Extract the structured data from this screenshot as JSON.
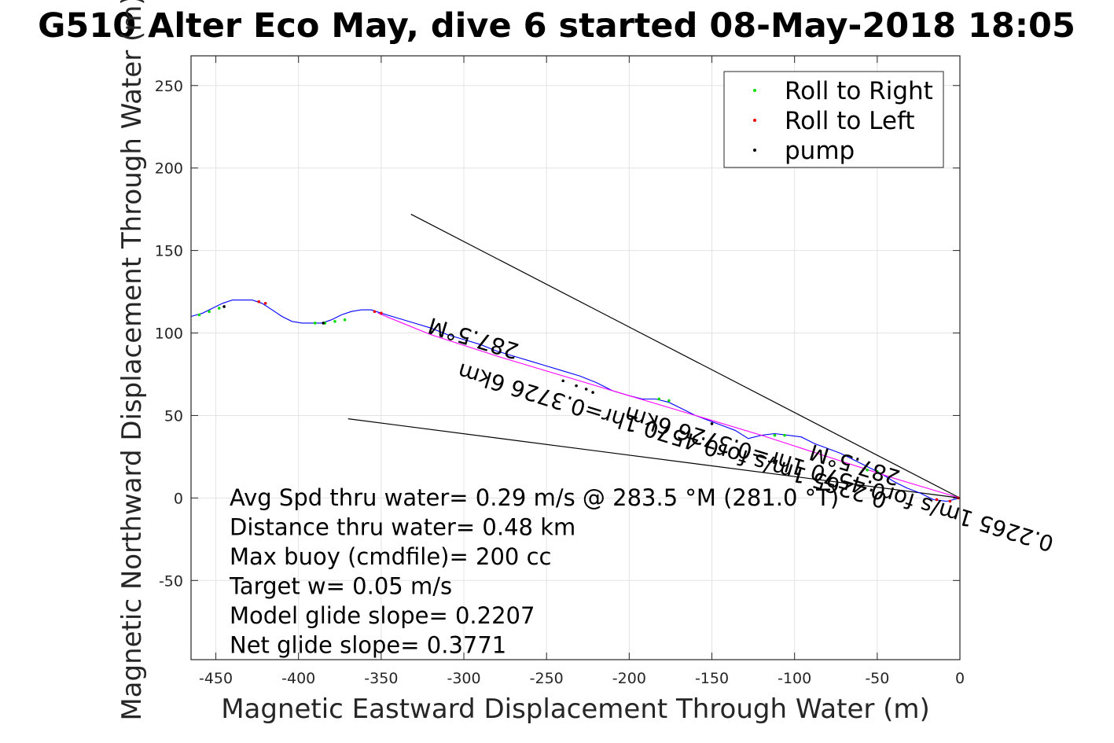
{
  "chart_data": {
    "type": "line",
    "title": "G510 Alter Eco May, dive 6 started 08-May-2018 18:05",
    "xlabel": "Magnetic Eastward Displacement Through Water (m)",
    "ylabel": "Magnetic Northward Displacement Through Water (m)",
    "xlim": [
      -465,
      0
    ],
    "ylim": [
      -98,
      268
    ],
    "xticks": [
      -450,
      -400,
      -350,
      -300,
      -250,
      -200,
      -150,
      -100,
      -50,
      0
    ],
    "yticks": [
      250,
      200,
      150,
      100,
      50,
      0,
      -50
    ],
    "xtick_labels": [
      "-450",
      "-400",
      "-350",
      "-300",
      "-250",
      "-200",
      "-150",
      "-100",
      "-50",
      "0"
    ],
    "ytick_labels": [
      "250",
      "200",
      "150",
      "100",
      "50",
      "0",
      "-50"
    ],
    "grid": true,
    "legend_position": "top-right",
    "legend": [
      {
        "label": "Roll to Right",
        "color": "#00dd00"
      },
      {
        "label": "Roll to Left",
        "color": "#ee0000"
      },
      {
        "label": "pump",
        "color": "#000000"
      }
    ],
    "series": [
      {
        "color": "#0000ff",
        "x": [
          0,
          -8,
          -16,
          -24,
          -32,
          -40,
          -48,
          -56,
          -64,
          -72,
          -80,
          -88,
          -96,
          -104,
          -112,
          -120,
          -128,
          -136,
          -144,
          -152,
          -160,
          -168,
          -176,
          -184,
          -192,
          -200,
          -210,
          -220,
          -230,
          -240,
          -250,
          -260,
          -270,
          -280,
          -290,
          -300,
          -310,
          -320,
          -330,
          -340,
          -350,
          -356,
          -362,
          -368,
          -374,
          -380,
          -386,
          -392,
          -398,
          -404,
          -410,
          -416,
          -422,
          -428,
          -434,
          -440,
          -446,
          -452,
          -458,
          -465
        ],
        "y": [
          0,
          -2,
          -1,
          3,
          6,
          10,
          15,
          19,
          23,
          27,
          30,
          33,
          37,
          38,
          39,
          38,
          36,
          41,
          44,
          47,
          50,
          54,
          58,
          60,
          60,
          62,
          65,
          70,
          74,
          77,
          80,
          83,
          86,
          89,
          93,
          96,
          99,
          103,
          106,
          109,
          112,
          114,
          114,
          113,
          111,
          108,
          106,
          106,
          106,
          107,
          110,
          114,
          118,
          120,
          120,
          120,
          118,
          115,
          112,
          110
        ]
      },
      {
        "color": "#ff00ff",
        "x": [
          0,
          -40,
          -80,
          -120,
          -160,
          -200,
          -240,
          -280,
          -320,
          -352
        ],
        "y": [
          0,
          12,
          25,
          38,
          50,
          62,
          74,
          86,
          99,
          112
        ]
      }
    ],
    "reference_lines": [
      {
        "x": [
          0,
          -332
        ],
        "y": [
          0,
          172
        ]
      },
      {
        "x": [
          0,
          -370
        ],
        "y": [
          0,
          48
        ]
      }
    ],
    "markers": {
      "roll_right": {
        "x": [
          -460,
          -454,
          -448,
          -390,
          -384,
          -378,
          -372,
          -182,
          -176,
          -112,
          -106,
          -56,
          -50
        ],
        "y": [
          111,
          113,
          115,
          106,
          106,
          107,
          108,
          60,
          59,
          38,
          38,
          17,
          16
        ]
      },
      "roll_left": {
        "x": [
          -424,
          -420,
          -354,
          -350,
          -14,
          -6,
          -1
        ],
        "y": [
          119,
          118,
          113,
          112,
          -1,
          -2,
          0
        ]
      },
      "pump": {
        "x": [
          -445,
          -385,
          -240,
          -232,
          -226,
          -222,
          -150
        ],
        "y": [
          116,
          106,
          71,
          68,
          66,
          64,
          45
        ]
      }
    },
    "annotations": [
      "Avg Spd thru water=  0.29 m/s @ 283.5 °M (281.0 °T)",
      "Distance thru water=  0.48 km",
      "Max buoy (cmdfile)= 200 cc",
      "Target w= 0.05 m/s",
      "Model glide slope= 0.2207",
      "Net glide slope= 0.3771"
    ],
    "rotated_labels": [
      "287.5°M",
      "0.2265 1m/s for0.4570 1hr=0.3726 6km",
      "287.5°M",
      "0.2265 1m/s for0.4570 1hr=0.3726 6km"
    ]
  }
}
